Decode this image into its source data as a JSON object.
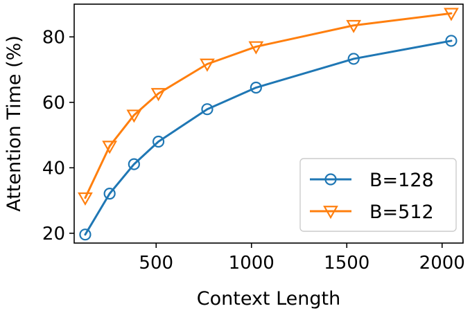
{
  "chart_data": {
    "type": "line",
    "xlabel": "Context Length",
    "ylabel": "Attention Time (%)",
    "xlim": [
      70,
      2110
    ],
    "ylim": [
      17,
      90
    ],
    "xticks": [
      500,
      1000,
      1500,
      2000
    ],
    "yticks": [
      20,
      40,
      60,
      80
    ],
    "grid": false,
    "legend_position": "lower-right",
    "series": [
      {
        "name": "B=128",
        "color": "#1f77b4",
        "marker": "circle",
        "x": [
          128,
          256,
          384,
          512,
          768,
          1024,
          1536,
          2048
        ],
        "y": [
          19.6,
          32.1,
          41.1,
          48.0,
          57.9,
          64.5,
          73.3,
          78.8
        ]
      },
      {
        "name": "B=512",
        "color": "#ff7f0e",
        "marker": "triangle-down",
        "x": [
          128,
          256,
          384,
          512,
          768,
          1024,
          1536,
          2048
        ],
        "y": [
          30.8,
          46.6,
          56.1,
          62.7,
          71.7,
          77.0,
          83.5,
          87.2
        ]
      }
    ]
  }
}
